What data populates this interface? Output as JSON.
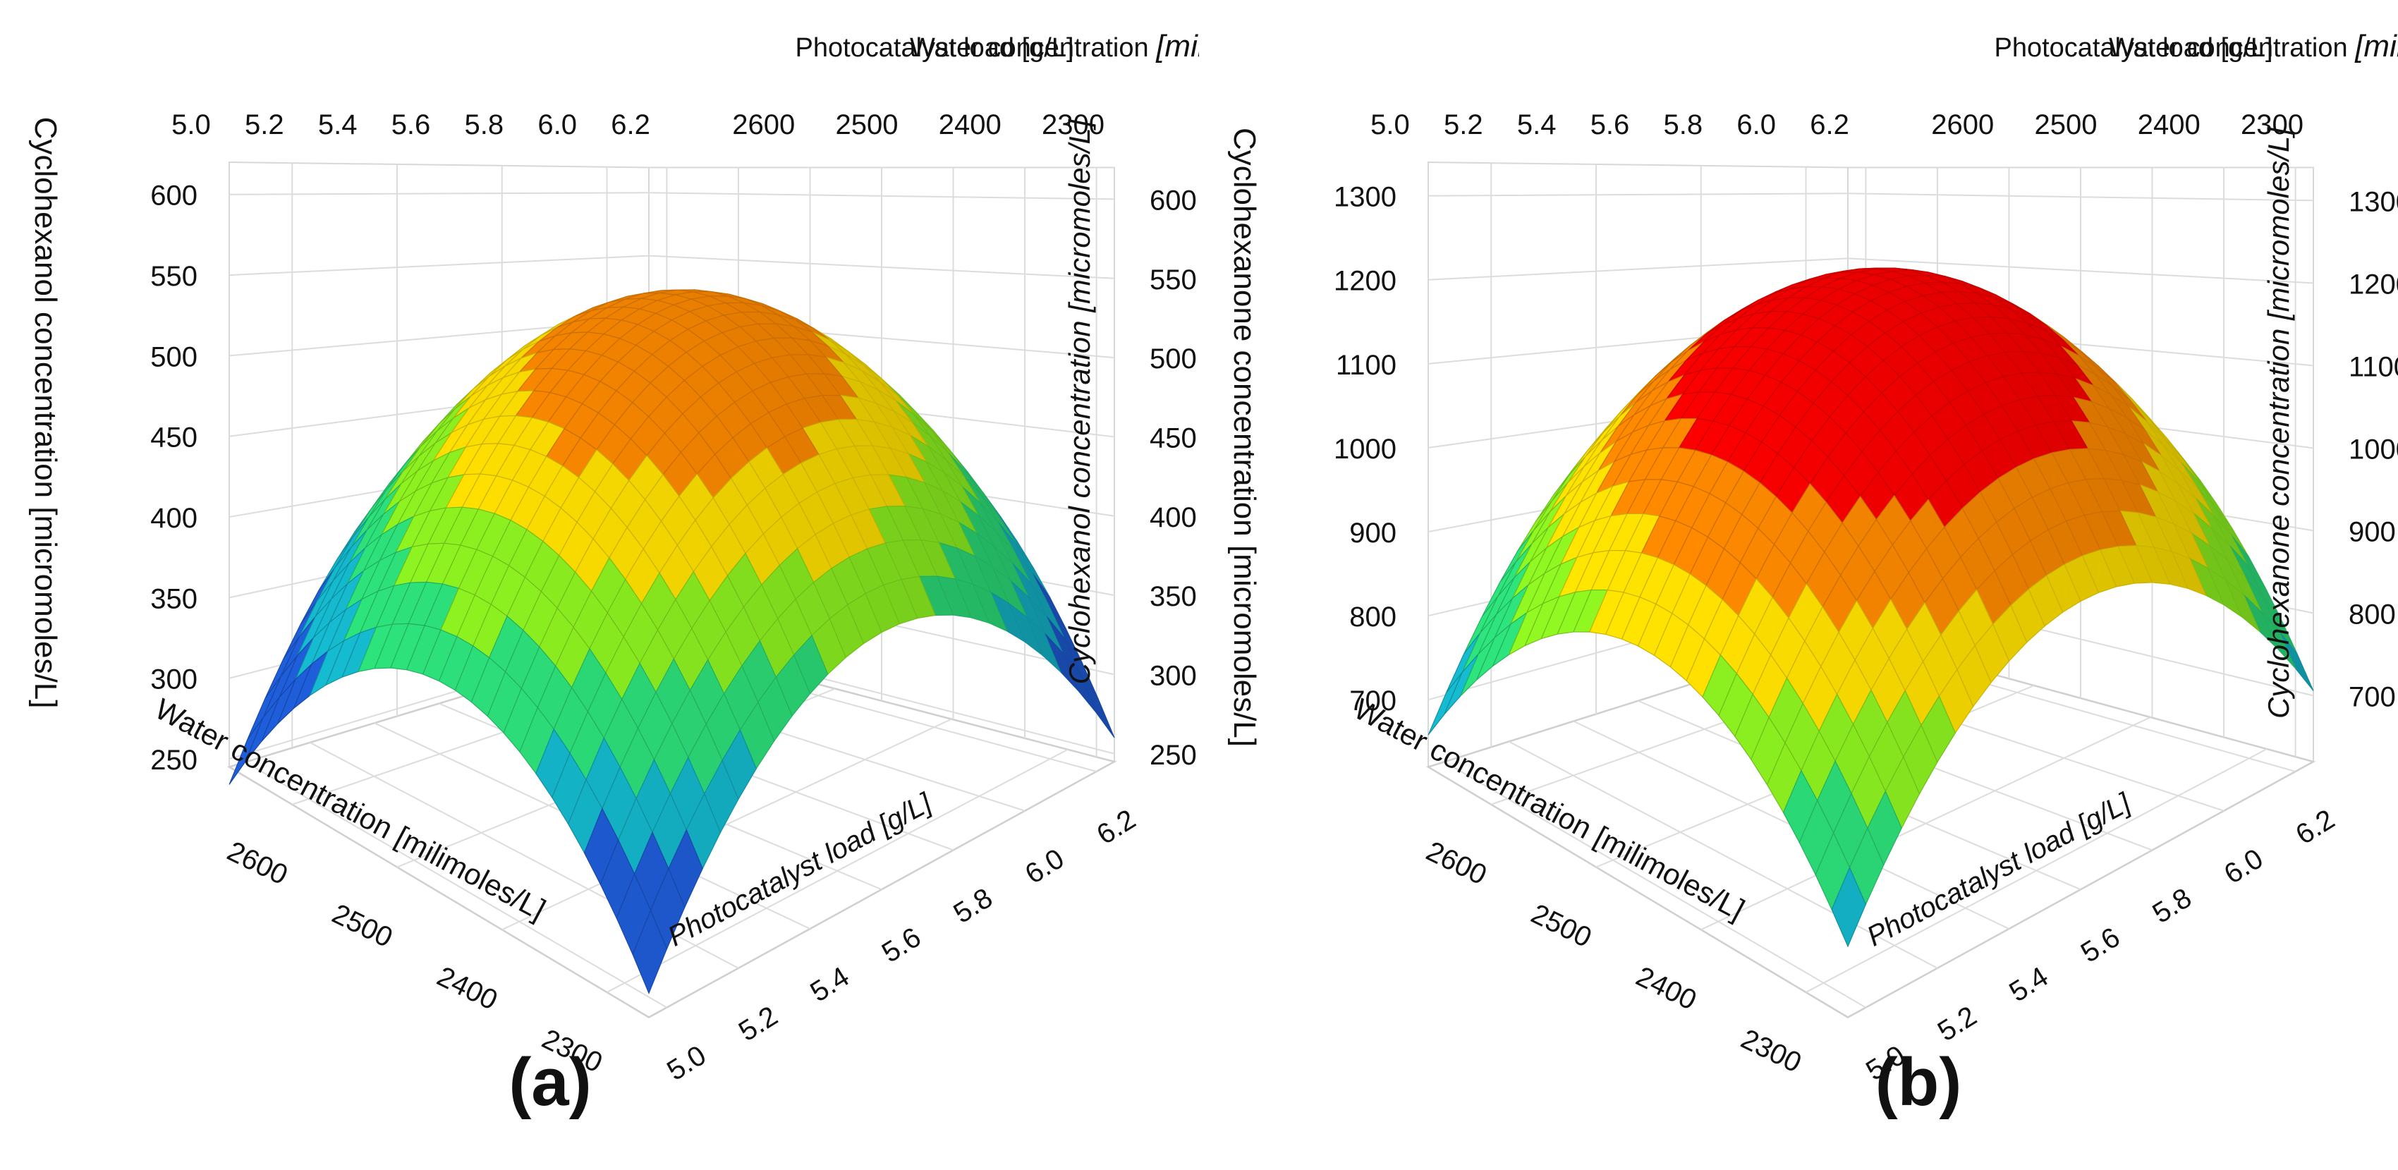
{
  "chart_data": [
    {
      "type": "surface3d",
      "panel_label": "(a)",
      "z_label": "Cyclohexanol concentration [micromoles/L]",
      "z_label_right": "Cyclohexanol concentration [micromoles/L]",
      "x_label": "Photocatalyst load [g/L]",
      "y_label_top_plain": "Water concentration ",
      "y_label_top_unit": "[milimoles/L]",
      "y_label": "Water concentration [milimoles/L]",
      "x_ticks": [
        "5.0",
        "5.2",
        "5.4",
        "5.6",
        "5.8",
        "6.0",
        "6.2"
      ],
      "x_tick_values": [
        5.0,
        5.2,
        5.4,
        5.6,
        5.8,
        6.0,
        6.2
      ],
      "y_ticks": [
        "2600",
        "2500",
        "2400",
        "2300"
      ],
      "y_tick_values": [
        2600,
        2500,
        2400,
        2300
      ],
      "z_ticks": [
        "600",
        "550",
        "500",
        "450",
        "400",
        "350",
        "300",
        "250"
      ],
      "z_tick_values": [
        600,
        550,
        500,
        450,
        400,
        350,
        300,
        250
      ],
      "xlim": [
        4.95,
        6.25
      ],
      "ylim": [
        2260,
        2660
      ],
      "zlim": [
        245,
        620
      ],
      "surface": {
        "optimum_x": 5.6,
        "optimum_y": 2450,
        "peak": 598,
        "drop_x": 185,
        "drop_y": 165
      },
      "contour_levels": [
        350,
        400,
        450,
        500,
        550,
        600
      ],
      "contour_colors": [
        "#1e5ad2",
        "#14b4c8",
        "#2cdc78",
        "#8cf020",
        "#ffe000",
        "#ff8a00",
        "#ff0000"
      ]
    },
    {
      "type": "surface3d",
      "panel_label": "(b)",
      "z_label": "Cyclohexanone concentration [micromoles/L]",
      "z_label_right": "Cyclohexanone concentration [micromoles/L]",
      "x_label": "Photocatalyst load [g/L]",
      "y_label_top_plain": "Water concentration ",
      "y_label_top_unit": "[milimoles/L]",
      "y_label": "Water concentration [milimoles/L]",
      "x_ticks": [
        "5.0",
        "5.2",
        "5.4",
        "5.6",
        "5.8",
        "6.0",
        "6.2"
      ],
      "x_tick_values": [
        5.0,
        5.2,
        5.4,
        5.6,
        5.8,
        6.0,
        6.2
      ],
      "y_ticks": [
        "2600",
        "2500",
        "2400",
        "2300"
      ],
      "y_tick_values": [
        2600,
        2500,
        2400,
        2300
      ],
      "z_ticks": [
        "1300",
        "1200",
        "1100",
        "1000",
        "900",
        "800",
        "700"
      ],
      "z_tick_values": [
        1300,
        1200,
        1100,
        1000,
        900,
        800,
        700
      ],
      "xlim": [
        4.95,
        6.25
      ],
      "ylim": [
        2260,
        2660
      ],
      "zlim": [
        620,
        1340
      ],
      "surface": {
        "optimum_x": 5.6,
        "optimum_y": 2450,
        "peak": 1335,
        "drop_x": 335,
        "drop_y": 300
      },
      "contour_levels": [
        700,
        800,
        900,
        1000,
        1100,
        1200,
        1300
      ],
      "contour_colors": [
        "#1e5ad2",
        "#14b4c8",
        "#2cdc78",
        "#8cf020",
        "#ffe000",
        "#ff8a00",
        "#ff0000"
      ]
    }
  ]
}
